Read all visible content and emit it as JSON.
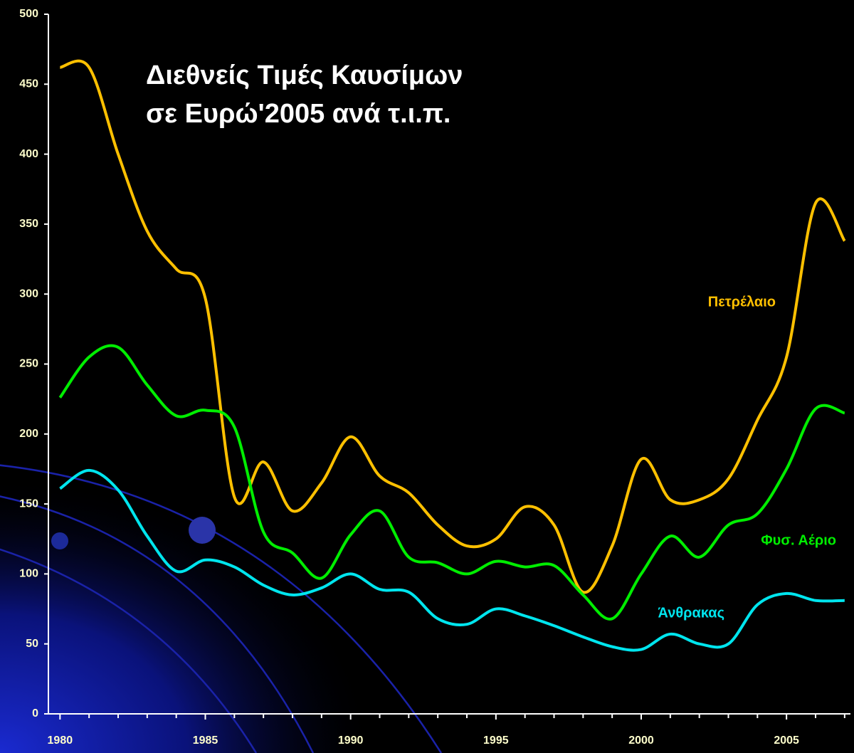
{
  "chart_data": {
    "type": "line",
    "title": [
      "Διεθνείς Τιμές Καυσίμων",
      "σε Ευρώ'2005 ανά τ.ι.π."
    ],
    "x": [
      1980,
      1981,
      1982,
      1983,
      1984,
      1985,
      1986,
      1987,
      1988,
      1989,
      1990,
      1991,
      1992,
      1993,
      1994,
      1995,
      1996,
      1997,
      1998,
      1999,
      2000,
      2001,
      2002,
      2003,
      2004,
      2005,
      2006,
      2007
    ],
    "series": [
      {
        "name": "Πετρέλαιο",
        "color": "#ffc000",
        "values": [
          462,
          462,
          400,
          345,
          318,
          297,
          155,
          180,
          145,
          165,
          198,
          170,
          158,
          135,
          120,
          125,
          148,
          135,
          87,
          120,
          182,
          153,
          153,
          168,
          210,
          255,
          365,
          338
        ]
      },
      {
        "name": "Φυσ. Αέριο",
        "color": "#00ee00",
        "values": [
          226,
          255,
          262,
          235,
          213,
          217,
          205,
          130,
          115,
          97,
          128,
          145,
          112,
          108,
          100,
          109,
          105,
          106,
          85,
          68,
          100,
          127,
          112,
          135,
          143,
          175,
          218,
          215
        ]
      },
      {
        "name": "Άνθρακας",
        "color": "#00e5ee",
        "values": [
          161,
          174,
          160,
          127,
          102,
          110,
          105,
          92,
          85,
          90,
          100,
          89,
          87,
          68,
          64,
          75,
          70,
          63,
          55,
          48,
          46,
          57,
          50,
          50,
          78,
          86,
          81,
          81
        ]
      }
    ],
    "xlim": [
      1979.6,
      2007.2
    ],
    "xticks": [
      1980,
      1985,
      1990,
      1995,
      2000,
      2005
    ],
    "xminorticks": [
      1981,
      1982,
      1983,
      1984,
      1986,
      1987,
      1988,
      1989,
      1991,
      1992,
      1993,
      1994,
      1996,
      1997,
      1998,
      1999,
      2001,
      2002,
      2003,
      2004,
      2006,
      2007
    ],
    "ylim": [
      0,
      500
    ],
    "yticks": [
      0,
      50,
      100,
      150,
      200,
      250,
      300,
      350,
      400,
      450,
      500
    ],
    "grid": false
  }
}
